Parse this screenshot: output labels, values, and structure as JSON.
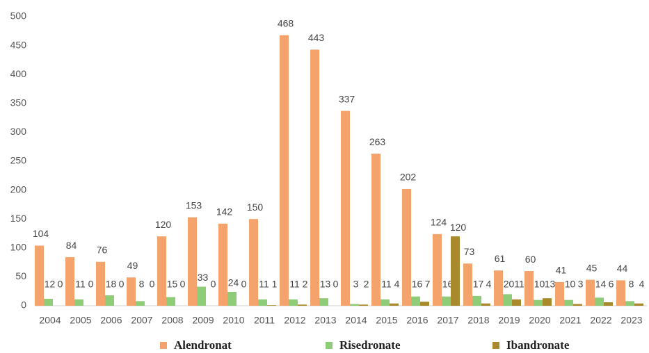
{
  "chart_data": {
    "type": "bar",
    "categories": [
      "2004",
      "2005",
      "2006",
      "2007",
      "2008",
      "2009",
      "2010",
      "2011",
      "2012",
      "2013",
      "2014",
      "2015",
      "2016",
      "2017",
      "2018",
      "2019",
      "2020",
      "2021",
      "2022",
      "2023"
    ],
    "series": [
      {
        "name": "Alendronat",
        "color": "#f4a36c",
        "values": [
          104,
          84,
          76,
          49,
          120,
          153,
          142,
          150,
          468,
          443,
          337,
          263,
          202,
          124,
          73,
          61,
          60,
          41,
          45,
          44
        ]
      },
      {
        "name": "Risedronate",
        "color": "#8fcc78",
        "values": [
          12,
          11,
          18,
          8,
          15,
          33,
          24,
          11,
          11,
          13,
          3,
          11,
          16,
          16,
          17,
          20,
          10,
          10,
          14,
          8
        ]
      },
      {
        "name": "Ibandronate",
        "color": "#a88a2c",
        "values": [
          0,
          0,
          0,
          0,
          0,
          0,
          0,
          1,
          2,
          0,
          2,
          4,
          7,
          120,
          4,
          11,
          13,
          3,
          6,
          4
        ]
      }
    ],
    "ylim": [
      0,
      500
    ],
    "yticks": [
      0,
      50,
      100,
      150,
      200,
      250,
      300,
      350,
      400,
      450,
      500
    ],
    "grid": false,
    "legend": "bottom"
  }
}
